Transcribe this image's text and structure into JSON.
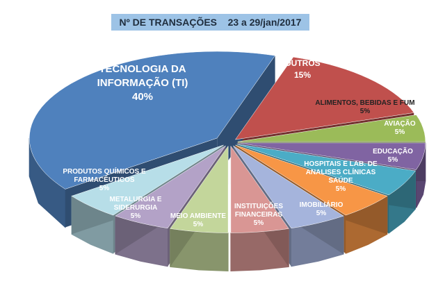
{
  "chart_data": {
    "type": "pie",
    "title": "Nº DE TRANSAÇÕES    23 a 29/jan/2017",
    "categories": [
      "TECNOLOGIA DA INFORMAÇÃO (TI)",
      "OUTROS",
      "ALIMENTOS, BEBIDAS E FUM",
      "AVIAÇÃO",
      "EDUCAÇÃO",
      "HOSPITAIS E LAB. DE ANALISES CLÍNICAS SAÚDE",
      "IMOBILIÁRIO",
      "INSTITUIÇÕES FINANCEIRAS",
      "MEIO AMBIENTE",
      "METALURGIA E SIDERURGIA",
      "PRODUTOS QUÍMICOS E FARMACÊUTICOS"
    ],
    "values": [
      40,
      15,
      5,
      5,
      5,
      5,
      5,
      5,
      5,
      5,
      5
    ],
    "value_labels": [
      "40%",
      "15%",
      "5%",
      "5%",
      "5%",
      "5%",
      "5%",
      "5%",
      "5%",
      "5%",
      "5%"
    ],
    "colors": [
      "#4f81bd",
      "#c0504d",
      "#9bbb59",
      "#8064a2",
      "#4bacc6",
      "#f79646",
      "#a5b4dc",
      "#d99694",
      "#c3d69b",
      "#b3a2c7",
      "#b7dee8"
    ]
  }
}
